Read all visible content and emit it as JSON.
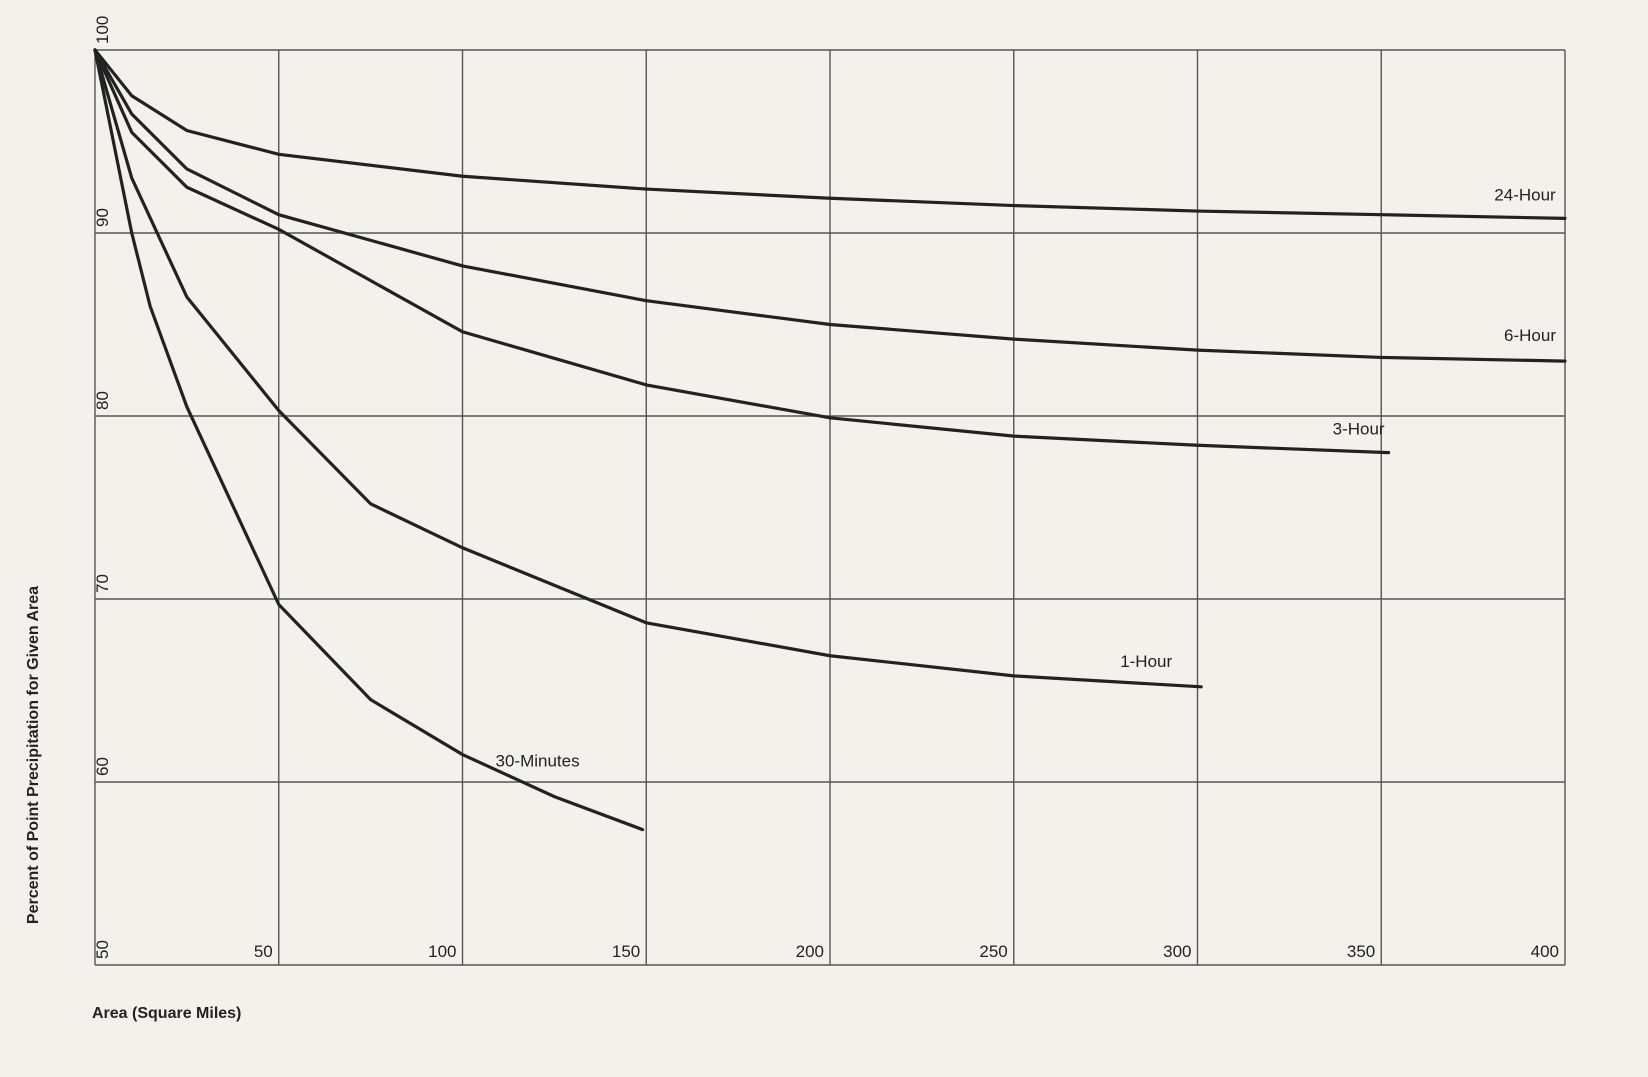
{
  "chart_data": {
    "type": "line",
    "x_label": "Area (Square Miles)",
    "y_label": "Percent of Point Precipitation for Given Area",
    "xlim": [
      0,
      400
    ],
    "ylim": [
      50,
      100
    ],
    "xticks": [
      50,
      100,
      150,
      200,
      250,
      300,
      350,
      400
    ],
    "yticks": [
      50,
      60,
      70,
      80,
      90,
      100
    ],
    "grid": true,
    "series": [
      {
        "name": "24-Hour",
        "color": "#222222",
        "x": [
          0,
          10,
          25,
          50,
          100,
          150,
          200,
          250,
          300,
          350,
          400
        ],
        "values": [
          100,
          97.5,
          95.6,
          94.3,
          93.1,
          92.4,
          91.9,
          91.5,
          91.2,
          91.0,
          90.8
        ]
      },
      {
        "name": "6-Hour",
        "color": "#222222",
        "x": [
          0,
          10,
          25,
          50,
          100,
          150,
          200,
          250,
          300,
          350,
          400
        ],
        "values": [
          100,
          96.5,
          93.5,
          91,
          88.2,
          86.3,
          85,
          84.2,
          83.6,
          83.2,
          83.0
        ]
      },
      {
        "name": "3-Hour",
        "color": "#222222",
        "x": [
          0,
          10,
          25,
          50,
          100,
          150,
          200,
          250,
          300,
          352
        ],
        "values": [
          100,
          95.5,
          92.5,
          90.2,
          84.6,
          81.7,
          79.9,
          78.9,
          78.4,
          78.0
        ]
      },
      {
        "name": "1-Hour",
        "color": "#222222",
        "x": [
          0,
          10,
          25,
          50,
          75,
          100,
          150,
          200,
          250,
          301
        ],
        "values": [
          100,
          93,
          86.5,
          80.3,
          75.2,
          72.8,
          68.7,
          66.9,
          65.8,
          65.2
        ]
      },
      {
        "name": "30-Minutes",
        "color": "#222222",
        "x": [
          0,
          10,
          15,
          25,
          50,
          75,
          100,
          125,
          149
        ],
        "values": [
          100,
          90,
          86,
          80.5,
          69.7,
          64.5,
          61.5,
          59.2,
          57.4
        ]
      }
    ]
  }
}
